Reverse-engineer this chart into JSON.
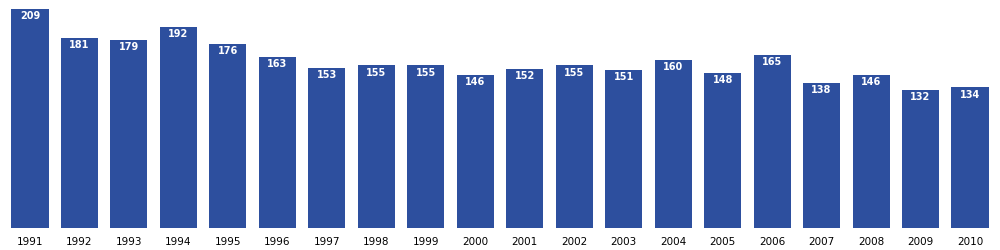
{
  "years": [
    1991,
    1992,
    1993,
    1994,
    1995,
    1996,
    1997,
    1998,
    1999,
    2000,
    2001,
    2002,
    2003,
    2004,
    2005,
    2006,
    2007,
    2008,
    2009,
    2010
  ],
  "values": [
    209,
    181,
    179,
    192,
    176,
    163,
    153,
    155,
    155,
    146,
    152,
    155,
    151,
    160,
    148,
    165,
    138,
    146,
    132,
    134
  ],
  "bar_color": "#2d4f9e",
  "label_color": "#ffffff",
  "label_fontsize": 7.0,
  "tick_fontsize": 7.5,
  "background_color": "#ffffff",
  "ylim": [
    0,
    215
  ],
  "bar_width": 0.75
}
